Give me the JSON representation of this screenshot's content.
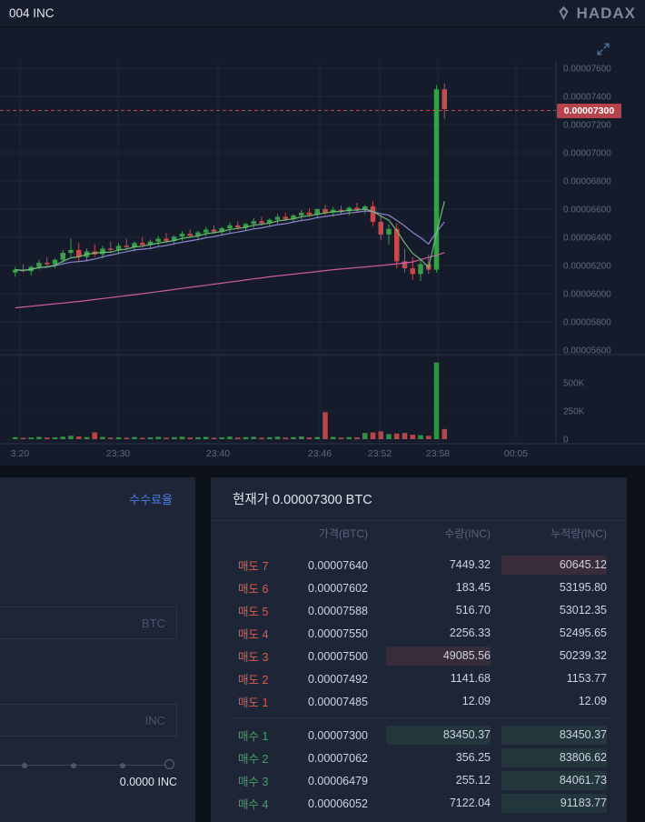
{
  "top_bar": {
    "symbol": "004 INC",
    "brand": "HADAX"
  },
  "icons": {
    "brand": "gem-icon",
    "chart_expand": "expand-arrows-icon"
  },
  "chart": {
    "current_price": "0.00007300",
    "price_axis_labels": [
      "0.00007600",
      "0.00007400",
      "0.00007200",
      "0.00007000",
      "0.00006800",
      "0.00006600",
      "0.00006400",
      "0.00006200",
      "0.00006000",
      "0.00005800",
      "0.00005600"
    ],
    "volume_axis_labels": [
      "500K",
      "250K",
      "0"
    ],
    "time_labels": [
      "3:20",
      "23:30",
      "23:40",
      "23:46",
      "23:52",
      "23:58",
      "00:05"
    ],
    "colors": {
      "up": "#35a046",
      "down": "#c84b4b",
      "ma_fast": "#70c277",
      "ma_mid": "#8f8cd6",
      "ma_slow": "#d45fa8",
      "price_line": "#c2474e",
      "grid": "#1e2738",
      "axis": "#2a3349",
      "text": "#5d6880"
    }
  },
  "chart_data": {
    "type": "candlestick",
    "note": "prices in 1e-8 BTC units, volume in K",
    "ylim": [
      5600,
      7600
    ],
    "y_step": 200,
    "volume_ticks": [
      500,
      250,
      0
    ],
    "candles": [
      [
        6150,
        6190,
        6120,
        6170,
        18
      ],
      [
        6170,
        6210,
        6150,
        6160,
        12
      ],
      [
        6160,
        6200,
        6130,
        6190,
        15
      ],
      [
        6190,
        6240,
        6170,
        6220,
        20
      ],
      [
        6220,
        6260,
        6190,
        6210,
        14
      ],
      [
        6210,
        6250,
        6180,
        6240,
        16
      ],
      [
        6240,
        6310,
        6220,
        6290,
        22
      ],
      [
        6290,
        6390,
        6260,
        6310,
        30
      ],
      [
        6310,
        6360,
        6230,
        6260,
        24
      ],
      [
        6260,
        6320,
        6230,
        6300,
        18
      ],
      [
        6300,
        6350,
        6260,
        6280,
        60
      ],
      [
        6280,
        6340,
        6250,
        6320,
        20
      ],
      [
        6320,
        6370,
        6290,
        6310,
        14
      ],
      [
        6310,
        6360,
        6280,
        6340,
        17
      ],
      [
        6340,
        6390,
        6310,
        6330,
        13
      ],
      [
        6330,
        6370,
        6300,
        6360,
        19
      ],
      [
        6360,
        6400,
        6330,
        6345,
        12
      ],
      [
        6345,
        6385,
        6315,
        6370,
        16
      ],
      [
        6370,
        6410,
        6340,
        6390,
        21
      ],
      [
        6390,
        6430,
        6360,
        6375,
        13
      ],
      [
        6375,
        6415,
        6345,
        6405,
        18
      ],
      [
        6405,
        6445,
        6375,
        6425,
        22
      ],
      [
        6425,
        6455,
        6395,
        6410,
        14
      ],
      [
        6410,
        6445,
        6385,
        6435,
        17
      ],
      [
        6435,
        6475,
        6405,
        6455,
        20
      ],
      [
        6455,
        6485,
        6425,
        6440,
        13
      ],
      [
        6440,
        6475,
        6415,
        6465,
        16
      ],
      [
        6465,
        6505,
        6435,
        6485,
        23
      ],
      [
        6485,
        6515,
        6455,
        6470,
        14
      ],
      [
        6470,
        6505,
        6445,
        6495,
        18
      ],
      [
        6495,
        6535,
        6465,
        6515,
        21
      ],
      [
        6515,
        6545,
        6485,
        6500,
        13
      ],
      [
        6500,
        6535,
        6475,
        6525,
        17
      ],
      [
        6525,
        6565,
        6495,
        6545,
        22
      ],
      [
        6545,
        6575,
        6515,
        6530,
        14
      ],
      [
        6530,
        6565,
        6505,
        6555,
        18
      ],
      [
        6555,
        6595,
        6525,
        6575,
        24
      ],
      [
        6575,
        6605,
        6545,
        6560,
        15
      ],
      [
        6560,
        6605,
        6535,
        6600,
        19
      ],
      [
        6600,
        6630,
        6560,
        6575,
        240
      ],
      [
        6575,
        6615,
        6545,
        6595,
        20
      ],
      [
        6595,
        6625,
        6565,
        6585,
        14
      ],
      [
        6585,
        6620,
        6555,
        6610,
        18
      ],
      [
        6610,
        6645,
        6580,
        6595,
        16
      ],
      [
        6595,
        6630,
        6565,
        6620,
        55
      ],
      [
        6620,
        6655,
        6480,
        6510,
        60
      ],
      [
        6510,
        6560,
        6380,
        6420,
        70
      ],
      [
        6420,
        6490,
        6350,
        6460,
        45
      ],
      [
        6460,
        6500,
        6180,
        6230,
        50
      ],
      [
        6230,
        6320,
        6150,
        6180,
        55
      ],
      [
        6180,
        6260,
        6100,
        6140,
        40
      ],
      [
        6140,
        6240,
        6090,
        6210,
        35
      ],
      [
        6210,
        6280,
        6140,
        6170,
        30
      ],
      [
        6170,
        7480,
        6150,
        7450,
        680
      ],
      [
        7450,
        7490,
        7240,
        7310,
        90
      ]
    ],
    "ma_fast_window": 5,
    "ma_mid_window": 10,
    "ma_slow_points": [
      [
        0,
        5900
      ],
      [
        8,
        5945
      ],
      [
        16,
        6000
      ],
      [
        24,
        6060
      ],
      [
        32,
        6120
      ],
      [
        40,
        6170
      ],
      [
        46,
        6200
      ],
      [
        50,
        6225
      ],
      [
        54,
        6290
      ]
    ],
    "current_price_value": 7300
  },
  "trade_panel": {
    "fee_rate_link": "수수료율",
    "price_placeholder": "BTC",
    "amount_placeholder": "INC",
    "total": "0.0000 INC"
  },
  "order_book": {
    "title": "현재가 0.00007300 BTC",
    "columns": [
      "가격(BTC)",
      "수량(INC)",
      "누적량(INC)"
    ],
    "asks": [
      {
        "label": "매도 7",
        "price": "0.00007640",
        "qty": "7449.32",
        "cum": "60645.12",
        "qty_hl": false,
        "cum_hl": true
      },
      {
        "label": "매도 6",
        "price": "0.00007602",
        "qty": "183.45",
        "cum": "53195.80",
        "qty_hl": false,
        "cum_hl": false
      },
      {
        "label": "매도 5",
        "price": "0.00007588",
        "qty": "516.70",
        "cum": "53012.35",
        "qty_hl": false,
        "cum_hl": false
      },
      {
        "label": "매도 4",
        "price": "0.00007550",
        "qty": "2256.33",
        "cum": "52495.65",
        "qty_hl": false,
        "cum_hl": false
      },
      {
        "label": "매도 3",
        "price": "0.00007500",
        "qty": "49085.56",
        "cum": "50239.32",
        "qty_hl": true,
        "cum_hl": false
      },
      {
        "label": "매도 2",
        "price": "0.00007492",
        "qty": "1141.68",
        "cum": "1153.77",
        "qty_hl": false,
        "cum_hl": false
      },
      {
        "label": "매도 1",
        "price": "0.00007485",
        "qty": "12.09",
        "cum": "12.09",
        "qty_hl": false,
        "cum_hl": false
      }
    ],
    "bids": [
      {
        "label": "매수 1",
        "price": "0.00007300",
        "qty": "83450.37",
        "cum": "83450.37",
        "qty_hl": true,
        "cum_hl": true
      },
      {
        "label": "매수 2",
        "price": "0.00007062",
        "qty": "356.25",
        "cum": "83806.62",
        "qty_hl": false,
        "cum_hl": true
      },
      {
        "label": "매수 3",
        "price": "0.00006479",
        "qty": "255.12",
        "cum": "84061.73",
        "qty_hl": false,
        "cum_hl": true
      },
      {
        "label": "매수 4",
        "price": "0.00006052",
        "qty": "7122.04",
        "cum": "91183.77",
        "qty_hl": false,
        "cum_hl": true
      }
    ]
  }
}
